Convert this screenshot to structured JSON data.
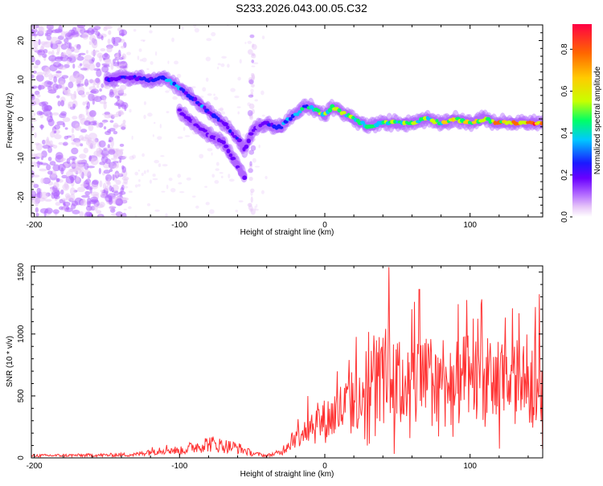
{
  "title": "S233.2026.043.00.05.C32",
  "chart_data": [
    {
      "type": "heatmap",
      "xlabel": "Height of straight line (km)",
      "ylabel": "Frequency (Hz)",
      "xlim": [
        -202,
        150
      ],
      "ylim": [
        -25,
        24
      ],
      "x_ticks": [
        -200,
        -100,
        0,
        100
      ],
      "y_ticks": [
        -20,
        -10,
        0,
        10,
        20
      ],
      "colorbar": {
        "label": "Normalized spectral amplitude",
        "range": [
          0.0,
          0.92
        ],
        "ticks": [
          0.0,
          0.2,
          0.4,
          0.6,
          0.8
        ],
        "colors": [
          "#ffffff",
          "#e8c8f8",
          "#b066ff",
          "#6a00ff",
          "#1a1aff",
          "#00c8ff",
          "#00ff66",
          "#c8ff00",
          "#ffcc00",
          "#ff6600",
          "#ff0044"
        ]
      },
      "ridge": {
        "x": [
          -150,
          -140,
          -130,
          -120,
          -110,
          -100,
          -90,
          -80,
          -70,
          -60,
          -55,
          -50,
          -45,
          -40,
          -35,
          -30,
          -25,
          -20,
          -15,
          -10,
          -5,
          0,
          5,
          10,
          15,
          20,
          30,
          40,
          50,
          60,
          70,
          80,
          90,
          100,
          110,
          120,
          130,
          140,
          150
        ],
        "freq": [
          10,
          10.5,
          10.5,
          10,
          10.5,
          8,
          5,
          2,
          -1,
          -5,
          -8,
          -3,
          -2,
          -1,
          -2,
          -2,
          0,
          1,
          3,
          3,
          2,
          1,
          3,
          2,
          1,
          0,
          -2,
          -1,
          -1,
          -1,
          0,
          -1,
          0,
          -1,
          0,
          -1,
          -1,
          -1,
          -1
        ],
        "amplitude": [
          0.3,
          0.35,
          0.4,
          0.4,
          0.45,
          0.45,
          0.4,
          0.4,
          0.35,
          0.35,
          0.3,
          0.25,
          0.3,
          0.35,
          0.4,
          0.45,
          0.45,
          0.5,
          0.55,
          0.55,
          0.6,
          0.6,
          0.65,
          0.65,
          0.65,
          0.6,
          0.6,
          0.6,
          0.6,
          0.65,
          0.65,
          0.7,
          0.7,
          0.75,
          0.75,
          0.8,
          0.8,
          0.85,
          0.9
        ]
      },
      "secondary_ridge": {
        "x": [
          -100,
          -90,
          -80,
          -70,
          -65,
          -60,
          -55
        ],
        "freq": [
          2,
          -1,
          -4,
          -6,
          -9,
          -12,
          -15
        ]
      }
    },
    {
      "type": "line",
      "xlabel": "Height of straight line (km)",
      "ylabel": "SNR (10 * v/v)",
      "xlim": [
        -202,
        150
      ],
      "ylim": [
        0,
        1550
      ],
      "x_ticks": [
        -200,
        -100,
        0,
        100
      ],
      "y_ticks": [
        0,
        500,
        1000,
        1500
      ],
      "color": "#ff3333",
      "envelope": {
        "x": [
          -202,
          -150,
          -130,
          -120,
          -110,
          -100,
          -90,
          -80,
          -70,
          -60,
          -50,
          -40,
          -30,
          -20,
          -10,
          0,
          10,
          20,
          30,
          40,
          50,
          60,
          70,
          80,
          90,
          100,
          110,
          120,
          130,
          140,
          150
        ],
        "snr": [
          20,
          25,
          30,
          60,
          80,
          60,
          100,
          130,
          110,
          90,
          40,
          20,
          50,
          220,
          300,
          330,
          420,
          500,
          620,
          750,
          650,
          700,
          680,
          720,
          650,
          700,
          680,
          650,
          660,
          690,
          700
        ]
      },
      "peaks": [
        {
          "x": 44,
          "snr": 1540
        },
        {
          "x": 65,
          "snr": 1360
        },
        {
          "x": 60,
          "snr": 1200
        },
        {
          "x": 108,
          "snr": 1280
        }
      ]
    }
  ]
}
